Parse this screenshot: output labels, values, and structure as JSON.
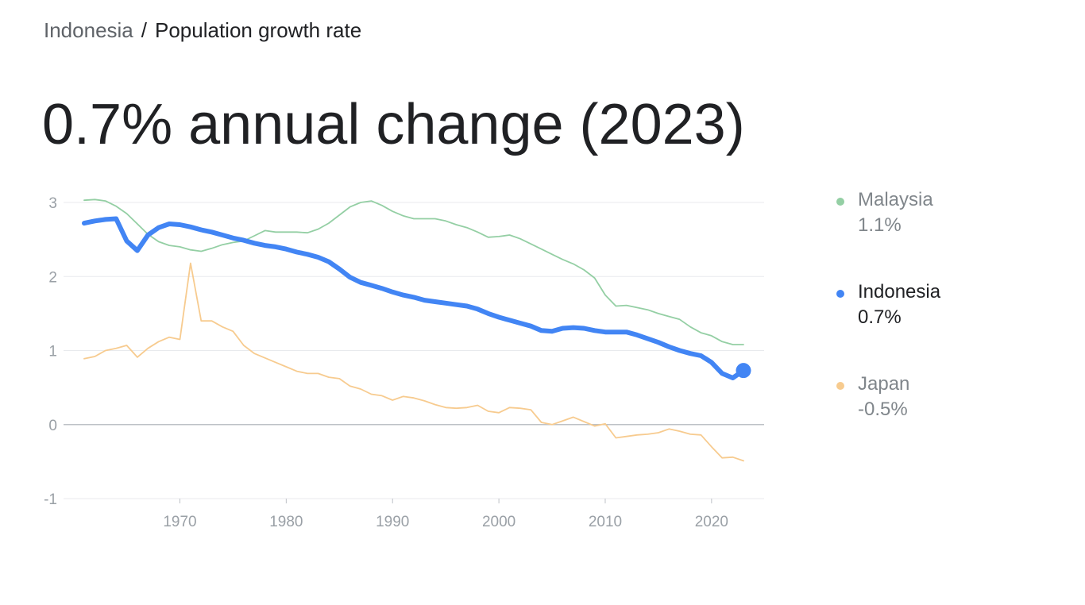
{
  "breadcrumb": {
    "root": "Indonesia",
    "separator": "/",
    "page": "Population growth rate"
  },
  "headline": "0.7% annual change (2023)",
  "colors": {
    "Malaysia": "#94cfa4",
    "Indonesia": "#4285f4",
    "Japan": "#f7cb8f",
    "grid": "#e8eaed",
    "zero_line": "#bdc1c6",
    "tick_text": "#9aa0a6"
  },
  "legend": [
    {
      "name": "Malaysia",
      "value": "1.1%",
      "color": "#94cfa4",
      "state": "muted"
    },
    {
      "name": "Indonesia",
      "value": "0.7%",
      "color": "#4285f4",
      "state": "active"
    },
    {
      "name": "Japan",
      "value": "-0.5%",
      "color": "#f7cb8f",
      "state": "muted"
    }
  ],
  "chart_data": {
    "type": "line",
    "title": "",
    "xlabel": "",
    "ylabel": "",
    "xlim": [
      1961,
      2023
    ],
    "ylim": [
      -1,
      3
    ],
    "yticks": [
      3,
      2,
      1,
      0,
      -1
    ],
    "xticks": [
      1970,
      1980,
      1990,
      2000,
      2010,
      2020
    ],
    "grid": true,
    "legend_position": "right",
    "highlight_series": "Indonesia",
    "highlight_point": {
      "x": 2023,
      "y": 0.73
    },
    "series": [
      {
        "name": "Malaysia",
        "x": [
          1961,
          1962,
          1963,
          1964,
          1965,
          1966,
          1967,
          1968,
          1969,
          1970,
          1971,
          1972,
          1973,
          1974,
          1975,
          1976,
          1977,
          1978,
          1979,
          1980,
          1981,
          1982,
          1983,
          1984,
          1985,
          1986,
          1987,
          1988,
          1989,
          1990,
          1991,
          1992,
          1993,
          1994,
          1995,
          1996,
          1997,
          1998,
          1999,
          2000,
          2001,
          2002,
          2003,
          2004,
          2005,
          2006,
          2007,
          2008,
          2009,
          2010,
          2011,
          2012,
          2013,
          2014,
          2015,
          2016,
          2017,
          2018,
          2019,
          2020,
          2021,
          2022,
          2023
        ],
        "values": [
          3.03,
          3.04,
          3.02,
          2.95,
          2.85,
          2.71,
          2.57,
          2.47,
          2.42,
          2.4,
          2.36,
          2.34,
          2.38,
          2.43,
          2.46,
          2.48,
          2.55,
          2.62,
          2.6,
          2.6,
          2.6,
          2.59,
          2.64,
          2.72,
          2.83,
          2.94,
          3.0,
          3.02,
          2.96,
          2.88,
          2.82,
          2.78,
          2.78,
          2.78,
          2.75,
          2.7,
          2.66,
          2.6,
          2.53,
          2.54,
          2.56,
          2.51,
          2.44,
          2.37,
          2.3,
          2.23,
          2.17,
          2.09,
          1.98,
          1.75,
          1.6,
          1.61,
          1.58,
          1.55,
          1.5,
          1.46,
          1.42,
          1.32,
          1.24,
          1.2,
          1.12,
          1.08,
          1.08
        ]
      },
      {
        "name": "Indonesia",
        "x": [
          1961,
          1962,
          1963,
          1964,
          1965,
          1966,
          1967,
          1968,
          1969,
          1970,
          1971,
          1972,
          1973,
          1974,
          1975,
          1976,
          1977,
          1978,
          1979,
          1980,
          1981,
          1982,
          1983,
          1984,
          1985,
          1986,
          1987,
          1988,
          1989,
          1990,
          1991,
          1992,
          1993,
          1994,
          1995,
          1996,
          1997,
          1998,
          1999,
          2000,
          2001,
          2002,
          2003,
          2004,
          2005,
          2006,
          2007,
          2008,
          2009,
          2010,
          2011,
          2012,
          2013,
          2014,
          2015,
          2016,
          2017,
          2018,
          2019,
          2020,
          2021,
          2022,
          2023
        ],
        "values": [
          2.72,
          2.75,
          2.77,
          2.78,
          2.48,
          2.35,
          2.56,
          2.66,
          2.71,
          2.7,
          2.67,
          2.63,
          2.6,
          2.56,
          2.52,
          2.49,
          2.45,
          2.42,
          2.4,
          2.37,
          2.33,
          2.3,
          2.26,
          2.2,
          2.1,
          1.99,
          1.92,
          1.88,
          1.84,
          1.79,
          1.75,
          1.72,
          1.68,
          1.66,
          1.64,
          1.62,
          1.6,
          1.56,
          1.5,
          1.45,
          1.41,
          1.37,
          1.33,
          1.27,
          1.26,
          1.3,
          1.31,
          1.3,
          1.27,
          1.25,
          1.25,
          1.25,
          1.21,
          1.16,
          1.11,
          1.05,
          1.0,
          0.96,
          0.93,
          0.84,
          0.69,
          0.63,
          0.73
        ]
      },
      {
        "name": "Japan",
        "x": [
          1961,
          1962,
          1963,
          1964,
          1965,
          1966,
          1967,
          1968,
          1969,
          1970,
          1971,
          1972,
          1973,
          1974,
          1975,
          1976,
          1977,
          1978,
          1979,
          1980,
          1981,
          1982,
          1983,
          1984,
          1985,
          1986,
          1987,
          1988,
          1989,
          1990,
          1991,
          1992,
          1993,
          1994,
          1995,
          1996,
          1997,
          1998,
          1999,
          2000,
          2001,
          2002,
          2003,
          2004,
          2005,
          2006,
          2007,
          2008,
          2009,
          2010,
          2011,
          2012,
          2013,
          2014,
          2015,
          2016,
          2017,
          2018,
          2019,
          2020,
          2021,
          2022,
          2023
        ],
        "values": [
          0.89,
          0.92,
          1.0,
          1.03,
          1.07,
          0.91,
          1.03,
          1.12,
          1.18,
          1.15,
          2.18,
          1.4,
          1.4,
          1.32,
          1.26,
          1.07,
          0.96,
          0.9,
          0.84,
          0.78,
          0.72,
          0.69,
          0.69,
          0.64,
          0.62,
          0.52,
          0.48,
          0.41,
          0.39,
          0.33,
          0.38,
          0.36,
          0.32,
          0.27,
          0.23,
          0.22,
          0.23,
          0.26,
          0.18,
          0.16,
          0.23,
          0.22,
          0.2,
          0.03,
          0.0,
          0.05,
          0.1,
          0.04,
          -0.02,
          0.01,
          -0.18,
          -0.16,
          -0.14,
          -0.13,
          -0.11,
          -0.06,
          -0.09,
          -0.13,
          -0.14,
          -0.3,
          -0.45,
          -0.44,
          -0.49
        ]
      }
    ]
  }
}
